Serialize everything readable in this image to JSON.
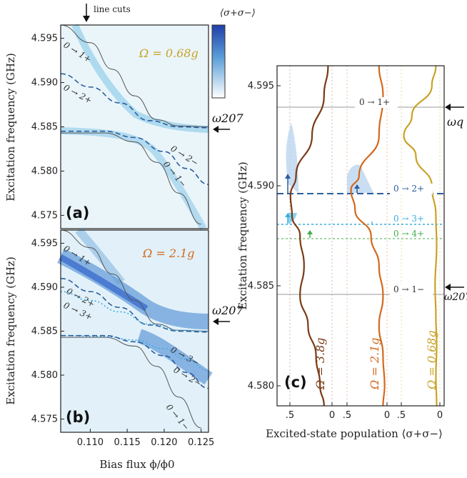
{
  "header": {
    "line_cuts_label": "line cuts",
    "colorbar_label": "⟨σ+σ−⟩"
  },
  "panel_a": {
    "tag": "(a)",
    "omega_label": "Ω = 0.68g",
    "omega_color": "#c9a227",
    "ylabel": "Excitation frequency (GHz)",
    "y_ticks": [
      "4.595",
      "4.590",
      "4.585",
      "4.580",
      "4.575"
    ],
    "branch_labels": [
      "0 → 1+",
      "0 → 2+",
      "0 → 2−",
      "0 → 1−"
    ],
    "side_label": "ω207"
  },
  "panel_b": {
    "tag": "(b)",
    "omega_label": "Ω = 2.1g",
    "omega_color": "#d2691e",
    "ylabel": "Excitation frequency (GHz)",
    "y_ticks": [
      "4.595",
      "4.590",
      "4.585",
      "4.580",
      "4.575"
    ],
    "x_ticks": [
      "0.110",
      "0.115",
      "0.120",
      "0.125"
    ],
    "xlabel": "Bias flux  ϕ/ϕ0",
    "branch_labels": [
      "0 → 1+",
      "0 → 2+",
      "0 → 3+",
      "0 → 3−",
      "0 → 2−",
      "0 → 1−"
    ],
    "side_label": "ω207"
  },
  "panel_c": {
    "tag": "(c)",
    "ylabel": "Excitation frequency (GHz)",
    "y_ticks": [
      "4.595",
      "4.590",
      "4.585",
      "4.580"
    ],
    "x_ticks": [
      ".5",
      "0",
      ".5",
      "0",
      ".5",
      "0"
    ],
    "xlabel": "Excited-state population ⟨σ+σ−⟩",
    "level_labels": [
      "0 → 1+",
      "0 → 2+",
      "0 → 3+",
      "0 → 4+",
      "0 → 1−"
    ],
    "side_labels": [
      "ωq",
      "ω207"
    ],
    "trace_labels": [
      "Ω = 3.8g",
      "Ω = 2.1g",
      "Ω = 0.68g"
    ],
    "colors": {
      "trace_38": "#7a3a16",
      "trace_21": "#d2691e",
      "trace_068": "#c9a227",
      "level_2": "#2c5d9e",
      "level_3": "#3aaee0",
      "level_4": "#3fae49",
      "level_1": "#999999"
    }
  },
  "chart_data": [
    {
      "type": "heatmap",
      "title": "Ω = 0.68g",
      "xlabel": "",
      "ylabel": "Excitation frequency (GHz)",
      "xlim": [
        0.106,
        0.126
      ],
      "ylim": [
        4.5735,
        4.5965
      ],
      "series": [
        {
          "name": "0 → 1+",
          "x": [
            0.106,
            0.11,
            0.113,
            0.116,
            0.119,
            0.122,
            0.126
          ],
          "y": [
            4.5965,
            4.5945,
            4.5915,
            4.5885,
            4.5858,
            4.5851,
            4.585
          ]
        },
        {
          "name": "0 → 2+",
          "x": [
            0.106,
            0.11,
            0.114,
            0.118,
            0.122,
            0.126
          ],
          "y": [
            4.591,
            4.5895,
            4.5877,
            4.5857,
            4.585,
            4.5849
          ]
        },
        {
          "name": "0 → 2−",
          "x": [
            0.106,
            0.112,
            0.116,
            0.12,
            0.123,
            0.126
          ],
          "y": [
            4.5845,
            4.5845,
            4.5838,
            4.5822,
            4.5803,
            4.5785
          ]
        },
        {
          "name": "0 → 1−",
          "x": [
            0.106,
            0.112,
            0.116,
            0.119,
            0.122,
            0.125
          ],
          "y": [
            4.5843,
            4.5843,
            4.5833,
            4.581,
            4.5775,
            4.574
          ]
        }
      ]
    },
    {
      "type": "heatmap",
      "title": "Ω = 2.1g",
      "xlabel": "Bias flux ϕ/ϕ0",
      "ylabel": "Excitation frequency (GHz)",
      "xlim": [
        0.106,
        0.126
      ],
      "ylim": [
        4.5735,
        4.5965
      ],
      "series": [
        {
          "name": "0 → 1+",
          "x": [
            0.106,
            0.11,
            0.113,
            0.116,
            0.119,
            0.122,
            0.126
          ],
          "y": [
            4.5965,
            4.5945,
            4.5915,
            4.5885,
            4.5858,
            4.5851,
            4.585
          ]
        },
        {
          "name": "0 → 2+",
          "x": [
            0.106,
            0.11,
            0.114,
            0.118,
            0.122,
            0.126
          ],
          "y": [
            4.591,
            4.5895,
            4.5877,
            4.5857,
            4.585,
            4.5849
          ]
        },
        {
          "name": "0 → 3+",
          "x": [
            0.106,
            0.11,
            0.114,
            0.118,
            0.122,
            0.126
          ],
          "y": [
            4.5895,
            4.5885,
            4.5872,
            4.5858,
            4.5851,
            4.585
          ]
        },
        {
          "name": "0 → 3−",
          "x": [
            0.106,
            0.112,
            0.116,
            0.12,
            0.123,
            0.126
          ],
          "y": [
            4.5845,
            4.5844,
            4.584,
            4.583,
            4.5818,
            4.5805
          ]
        },
        {
          "name": "0 → 2−",
          "x": [
            0.106,
            0.112,
            0.116,
            0.12,
            0.123,
            0.126
          ],
          "y": [
            4.5845,
            4.5845,
            4.5838,
            4.5822,
            4.5803,
            4.5785
          ]
        },
        {
          "name": "0 → 1−",
          "x": [
            0.106,
            0.112,
            0.116,
            0.119,
            0.122,
            0.125
          ],
          "y": [
            4.5843,
            4.5843,
            4.5833,
            4.581,
            4.5775,
            4.574
          ]
        }
      ]
    },
    {
      "type": "line",
      "title": "",
      "xlabel": "Excited-state population ⟨σ+σ−⟩",
      "ylabel": "Excitation frequency (GHz)",
      "ylim": [
        4.579,
        4.596
      ],
      "levels": [
        {
          "name": "0 → 1+",
          "y": 4.5935
        },
        {
          "name": "0 → 2+",
          "y": 4.5891
        },
        {
          "name": "0 → 3+",
          "y": 4.5877
        },
        {
          "name": "0 → 4+",
          "y": 4.587
        },
        {
          "name": "0 → 1−",
          "y": 4.5842
        }
      ],
      "series": [
        {
          "name": "Ω = 3.8g",
          "x": [
            0.05,
            0.1,
            0.25,
            0.45,
            0.52,
            0.5,
            0.4,
            0.35,
            0.4,
            0.3,
            0.2,
            0.15,
            0.1
          ],
          "y": [
            4.596,
            4.5945,
            4.5925,
            4.5905,
            4.5895,
            4.5885,
            4.5875,
            4.586,
            4.5845,
            4.583,
            4.5815,
            4.58,
            4.579
          ]
        },
        {
          "name": "Ω = 2.1g",
          "x": [
            0.1,
            0.05,
            0.1,
            0.35,
            0.45,
            0.4,
            0.2,
            0.1,
            0.05,
            0.1,
            0.05,
            0.03,
            0.05
          ],
          "y": [
            4.596,
            4.5945,
            4.5925,
            4.5905,
            4.5898,
            4.5888,
            4.5875,
            4.586,
            4.5845,
            4.583,
            4.5815,
            4.58,
            4.579
          ]
        },
        {
          "name": "Ω = 0.68g",
          "x": [
            0.05,
            0.1,
            0.35,
            0.45,
            0.3,
            0.1,
            0.05,
            0.04,
            0.06,
            0.05,
            0.04,
            0.05,
            0.04
          ],
          "y": [
            4.596,
            4.595,
            4.5935,
            4.5925,
            4.5915,
            4.59,
            4.5885,
            4.587,
            4.585,
            4.5835,
            4.582,
            4.5805,
            4.579
          ]
        }
      ]
    }
  ]
}
